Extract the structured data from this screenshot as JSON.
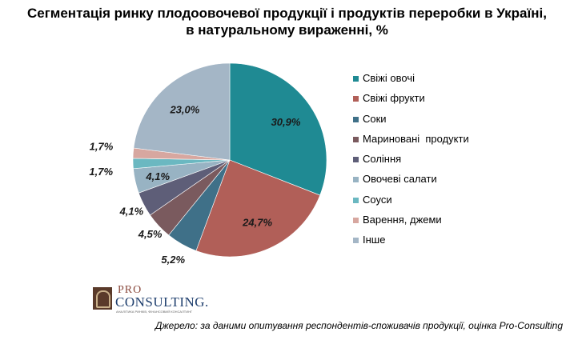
{
  "title": {
    "line1": "Сегментація ринку плодоовочевої продукції і продуктів переробки в Україні,",
    "line2": "в натуральному вираженні, %"
  },
  "chart_data": {
    "type": "pie",
    "title": "Сегментація ринку плодоовочевої продукції і продуктів переробки в Україні, в натуральному вираженні, %",
    "categories": [
      "Свіжі овочі",
      "Свіжі фрукти",
      "Соки",
      "Мариновані  продукти",
      "Соління",
      "Овочеві салати",
      "Соуси",
      "Варення, джеми",
      "Інше"
    ],
    "values": [
      30.9,
      24.7,
      5.2,
      4.5,
      4.1,
      4.1,
      1.7,
      1.7,
      23.0
    ],
    "value_labels": [
      "30,9%",
      "24,7%",
      "5,2%",
      "4,5%",
      "4,1%",
      "4,1%",
      "1,7%",
      "1,7%",
      "23,0%"
    ],
    "colors": [
      "#1f8a93",
      "#b15f58",
      "#3f7088",
      "#7a5a5e",
      "#5e5e78",
      "#98b3c3",
      "#6bb8c1",
      "#d7a7a0",
      "#a4b6c6"
    ],
    "legend_position": "right"
  },
  "logo": {
    "pro": "PRO",
    "name": "CONSULTING.",
    "tagline": "АНАЛІТИКА РИНКІВ, ФІНАНСОВИЙ КОНСАЛТИНГ"
  },
  "source": "Джерело: за даними опитування респондентів-споживачів продукції, оцінка Pro-Consulting"
}
